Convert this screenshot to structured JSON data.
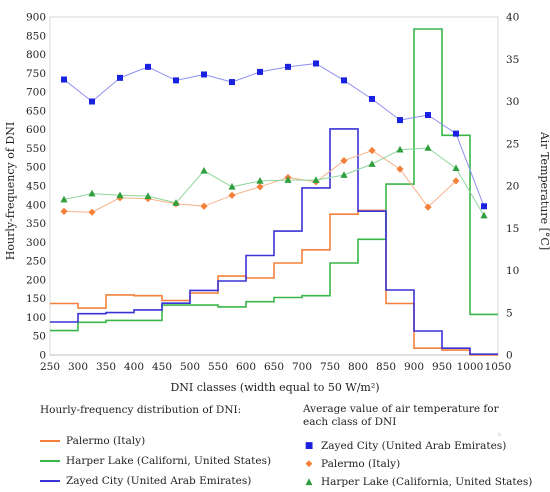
{
  "chart_data": {
    "type": "line",
    "xlabel": "DNI classes (width equal to 50 W/m²)",
    "ylabel_left": "Hourly-frequency of DNI",
    "ylabel_right": "Air Temperature [°C]",
    "xlim": [
      250,
      1050
    ],
    "ylim_left": [
      0,
      900
    ],
    "ylim_right": [
      0,
      40
    ],
    "x_ticks": [
      250,
      300,
      350,
      400,
      450,
      500,
      550,
      600,
      650,
      700,
      750,
      800,
      850,
      900,
      950,
      1000,
      1050
    ],
    "y_ticks_left": [
      0,
      50,
      100,
      150,
      200,
      250,
      300,
      350,
      400,
      450,
      500,
      550,
      600,
      650,
      700,
      750,
      800,
      850,
      900
    ],
    "y_ticks_right": [
      0,
      5,
      10,
      15,
      20,
      25,
      30,
      35,
      40
    ],
    "grid": false,
    "class_edges": [
      250,
      300,
      350,
      400,
      450,
      500,
      550,
      600,
      650,
      700,
      750,
      800,
      850,
      900,
      950,
      1000,
      1050
    ],
    "frequency_series": [
      {
        "name": "Palermo (Italy)",
        "color": "#f4803b",
        "values": [
          137,
          125,
          160,
          158,
          145,
          165,
          210,
          205,
          245,
          280,
          375,
          385,
          137,
          18,
          13,
          0
        ]
      },
      {
        "name": "Harper Lake (Californi, United States)",
        "color": "#3ab54a",
        "values": [
          65,
          87,
          92,
          92,
          133,
          133,
          128,
          142,
          153,
          158,
          245,
          308,
          455,
          868,
          585,
          108
        ]
      },
      {
        "name": "Zayed City (United Arab Emirates)",
        "color": "#3a33d6",
        "values": [
          88,
          110,
          113,
          120,
          138,
          172,
          197,
          265,
          330,
          445,
          602,
          383,
          173,
          64,
          18,
          2
        ]
      }
    ],
    "temperature_x": [
      275,
      325,
      375,
      425,
      475,
      525,
      575,
      625,
      675,
      725,
      775,
      825,
      875,
      925,
      975,
      1025
    ],
    "temperature_series": [
      {
        "name": "Zayed City (United Arab Emirates)",
        "color": "#1a22e0",
        "line_color": "#8e8ef0",
        "marker": "square",
        "values": [
          32.6,
          30.0,
          32.8,
          34.1,
          32.5,
          33.2,
          32.3,
          33.5,
          34.1,
          34.5,
          32.5,
          30.3,
          27.8,
          28.4,
          26.2,
          17.6
        ]
      },
      {
        "name": "Palermo (Italy)",
        "color": "#f4803b",
        "line_color": "#f6b38a",
        "marker": "diamond",
        "values": [
          17.0,
          16.9,
          18.6,
          18.5,
          17.9,
          17.6,
          18.9,
          19.9,
          21.0,
          20.5,
          23.0,
          24.2,
          22.0,
          17.5,
          20.6,
          null
        ]
      },
      {
        "name": "Harper Lake (California, United States)",
        "color": "#2e9e3e",
        "line_color": "#8fd69a",
        "marker": "triangle",
        "values": [
          18.4,
          19.1,
          18.9,
          18.8,
          18.0,
          21.8,
          19.9,
          20.6,
          20.7,
          20.7,
          21.3,
          22.6,
          24.3,
          24.5,
          22.1,
          16.5
        ]
      }
    ]
  },
  "legend": {
    "left_heading": "Hourly-frequency distribution of DNI:",
    "left_items": [
      "Palermo (Italy)",
      "Harper Lake (Californi, United States)",
      "Zayed City (United Arab Emirates)"
    ],
    "right_heading": "Average value of air temperature for each class of DNI",
    "right_items": [
      "Zayed City (United Arab Emirates)",
      "Palermo (Italy)",
      "Harper Lake (California, United States)"
    ],
    "marker_glyphs": [
      "■",
      "◆",
      "▲"
    ],
    "stray_mark": "◦"
  }
}
